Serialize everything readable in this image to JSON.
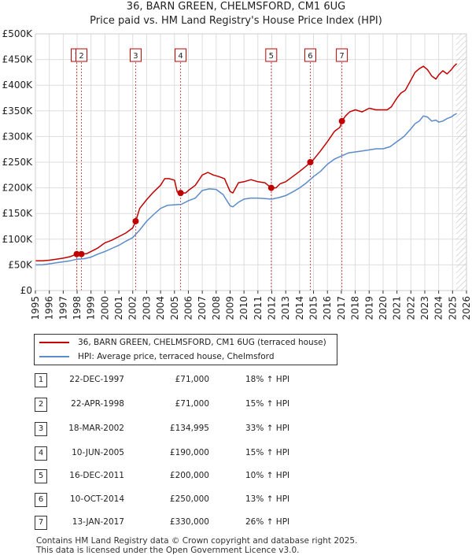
{
  "title": "36, BARN GREEN, CHELMSFORD, CM1 6UG",
  "subtitle": "Price paid vs. HM Land Registry's House Price Index (HPI)",
  "chart_data": {
    "type": "line",
    "xlabel": "",
    "ylabel": "",
    "xlim": [
      1995,
      2026
    ],
    "ylim": [
      0,
      500000
    ],
    "y_ticks": [
      {
        "value": 0,
        "label": "£0"
      },
      {
        "value": 50000,
        "label": "£50K"
      },
      {
        "value": 100000,
        "label": "£100K"
      },
      {
        "value": 150000,
        "label": "£150K"
      },
      {
        "value": 200000,
        "label": "£200K"
      },
      {
        "value": 250000,
        "label": "£250K"
      },
      {
        "value": 300000,
        "label": "£300K"
      },
      {
        "value": 350000,
        "label": "£350K"
      },
      {
        "value": 400000,
        "label": "£400K"
      },
      {
        "value": 450000,
        "label": "£450K"
      },
      {
        "value": 500000,
        "label": "£500K"
      }
    ],
    "x_ticks": [
      1995,
      1996,
      1997,
      1998,
      1999,
      2000,
      2001,
      2002,
      2003,
      2004,
      2005,
      2006,
      2007,
      2008,
      2009,
      2010,
      2011,
      2012,
      2013,
      2014,
      2015,
      2016,
      2017,
      2018,
      2019,
      2020,
      2021,
      2022,
      2023,
      2024,
      2025,
      2026
    ],
    "grid": true,
    "hatched_future_from": 2025.25,
    "series": [
      {
        "name": "36, BARN GREEN, CHELMSFORD, CM1 6UG (terraced house)",
        "color": "#c00000",
        "x": [
          1995.0,
          1995.5,
          1996.0,
          1996.5,
          1997.0,
          1997.5,
          1997.97,
          1998.31,
          1998.7,
          1999.0,
          1999.5,
          2000.0,
          2000.5,
          2001.0,
          2001.5,
          2002.0,
          2002.21,
          2002.5,
          2003.0,
          2003.5,
          2004.0,
          2004.3,
          2004.6,
          2005.0,
          2005.2,
          2005.44,
          2005.8,
          2006.0,
          2006.5,
          2007.0,
          2007.4,
          2007.8,
          2008.2,
          2008.6,
          2009.0,
          2009.2,
          2009.6,
          2010.0,
          2010.5,
          2011.0,
          2011.5,
          2011.96,
          2012.3,
          2012.6,
          2013.0,
          2013.5,
          2014.0,
          2014.5,
          2014.77,
          2015.0,
          2015.5,
          2016.0,
          2016.5,
          2016.9,
          2017.04,
          2017.3,
          2017.6,
          2018.0,
          2018.5,
          2019.0,
          2019.5,
          2020.0,
          2020.3,
          2020.6,
          2021.0,
          2021.3,
          2021.6,
          2022.0,
          2022.3,
          2022.6,
          2022.9,
          2023.2,
          2023.5,
          2023.8,
          2024.0,
          2024.3,
          2024.6,
          2024.9,
          2025.1,
          2025.3
        ],
        "values": [
          58000,
          58000,
          59000,
          61000,
          63000,
          66000,
          71000,
          71000,
          72000,
          76000,
          83000,
          93000,
          98000,
          105000,
          112000,
          122000,
          134995,
          160000,
          177000,
          192000,
          205000,
          218000,
          218000,
          215000,
          192000,
          190000,
          190000,
          195000,
          205000,
          225000,
          230000,
          225000,
          222000,
          218000,
          193000,
          190000,
          210000,
          212000,
          216000,
          212000,
          210000,
          200000,
          200000,
          208000,
          212000,
          222000,
          232000,
          243000,
          250000,
          255000,
          272000,
          290000,
          310000,
          318000,
          330000,
          340000,
          348000,
          352000,
          348000,
          355000,
          352000,
          352000,
          352000,
          358000,
          375000,
          385000,
          390000,
          410000,
          425000,
          432000,
          437000,
          430000,
          418000,
          412000,
          420000,
          428000,
          422000,
          430000,
          437000,
          442000
        ]
      },
      {
        "name": "HPI: Average price, terraced house, Chelmsford",
        "color": "#5b8bc9",
        "x": [
          1995.0,
          1995.5,
          1996.0,
          1996.5,
          1997.0,
          1997.5,
          1998.0,
          1998.5,
          1999.0,
          1999.5,
          2000.0,
          2000.5,
          2001.0,
          2001.5,
          2002.0,
          2002.5,
          2003.0,
          2003.5,
          2004.0,
          2004.5,
          2005.0,
          2005.5,
          2006.0,
          2006.5,
          2007.0,
          2007.5,
          2008.0,
          2008.5,
          2009.0,
          2009.2,
          2009.6,
          2010.0,
          2010.5,
          2011.0,
          2011.5,
          2012.0,
          2012.5,
          2013.0,
          2013.5,
          2014.0,
          2014.5,
          2015.0,
          2015.5,
          2016.0,
          2016.5,
          2017.0,
          2017.5,
          2018.0,
          2018.5,
          2019.0,
          2019.5,
          2020.0,
          2020.5,
          2021.0,
          2021.5,
          2022.0,
          2022.3,
          2022.6,
          2022.9,
          2023.2,
          2023.5,
          2023.8,
          2024.0,
          2024.3,
          2024.6,
          2024.9,
          2025.1,
          2025.3
        ],
        "values": [
          50000,
          50000,
          52000,
          54000,
          56000,
          58000,
          61000,
          62000,
          65000,
          71000,
          76000,
          82000,
          88000,
          96000,
          103000,
          118000,
          135000,
          148000,
          160000,
          166000,
          167000,
          168000,
          175000,
          180000,
          195000,
          198000,
          197000,
          187000,
          165000,
          163000,
          172000,
          178000,
          180000,
          180000,
          179000,
          178000,
          181000,
          185000,
          192000,
          200000,
          210000,
          222000,
          232000,
          246000,
          256000,
          262000,
          268000,
          270000,
          272000,
          274000,
          276000,
          276000,
          280000,
          290000,
          300000,
          315000,
          325000,
          330000,
          340000,
          338000,
          330000,
          332000,
          328000,
          330000,
          335000,
          338000,
          342000,
          345000
        ]
      }
    ],
    "sales": [
      {
        "n": "1",
        "x": 1997.97,
        "y": 71000
      },
      {
        "n": "2",
        "x": 1998.31,
        "y": 71000
      },
      {
        "n": "3",
        "x": 2002.21,
        "y": 134995
      },
      {
        "n": "4",
        "x": 2005.44,
        "y": 190000
      },
      {
        "n": "5",
        "x": 2011.96,
        "y": 200000
      },
      {
        "n": "6",
        "x": 2014.77,
        "y": 250000
      },
      {
        "n": "7",
        "x": 2017.04,
        "y": 330000
      }
    ]
  },
  "legend": {
    "property": "36, BARN GREEN, CHELMSFORD, CM1 6UG (terraced house)",
    "hpi": "HPI: Average price, terraced house, Chelmsford",
    "property_color": "#c00000",
    "hpi_color": "#5b8bc9"
  },
  "transactions": [
    {
      "n": "1",
      "date": "22-DEC-1997",
      "price": "£71,000",
      "hpi": "18% ↑ HPI"
    },
    {
      "n": "2",
      "date": "22-APR-1998",
      "price": "£71,000",
      "hpi": "15% ↑ HPI"
    },
    {
      "n": "3",
      "date": "18-MAR-2002",
      "price": "£134,995",
      "hpi": "33% ↑ HPI"
    },
    {
      "n": "4",
      "date": "10-JUN-2005",
      "price": "£190,000",
      "hpi": "15% ↑ HPI"
    },
    {
      "n": "5",
      "date": "16-DEC-2011",
      "price": "£200,000",
      "hpi": "10% ↑ HPI"
    },
    {
      "n": "6",
      "date": "10-OCT-2014",
      "price": "£250,000",
      "hpi": "13% ↑ HPI"
    },
    {
      "n": "7",
      "date": "13-JAN-2017",
      "price": "£330,000",
      "hpi": "26% ↑ HPI"
    }
  ],
  "footer": {
    "line1": "Contains HM Land Registry data © Crown copyright and database right 2025.",
    "line2": "This data is licensed under the Open Government Licence v3.0."
  }
}
